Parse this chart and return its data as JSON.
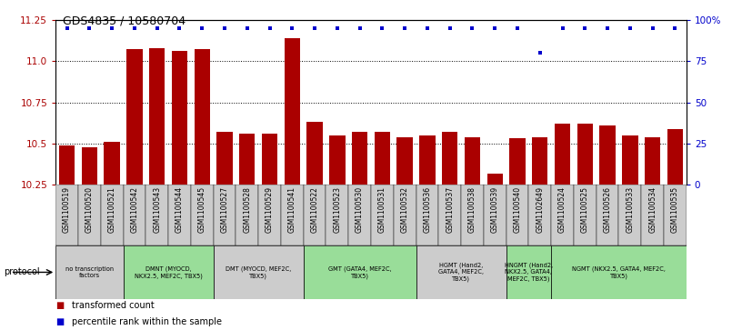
{
  "title": "GDS4835 / 10580704",
  "samples": [
    "GSM1100519",
    "GSM1100520",
    "GSM1100521",
    "GSM1100542",
    "GSM1100543",
    "GSM1100544",
    "GSM1100545",
    "GSM1100527",
    "GSM1100528",
    "GSM1100529",
    "GSM1100541",
    "GSM1100522",
    "GSM1100523",
    "GSM1100530",
    "GSM1100531",
    "GSM1100532",
    "GSM1100536",
    "GSM1100537",
    "GSM1100538",
    "GSM1100539",
    "GSM1100540",
    "GSM1102649",
    "GSM1100524",
    "GSM1100525",
    "GSM1100526",
    "GSM1100533",
    "GSM1100534",
    "GSM1100535"
  ],
  "bar_values": [
    10.49,
    10.48,
    10.51,
    11.07,
    11.08,
    11.06,
    11.07,
    10.57,
    10.56,
    10.56,
    11.14,
    10.63,
    10.55,
    10.57,
    10.57,
    10.54,
    10.55,
    10.57,
    10.54,
    10.32,
    10.53,
    10.54,
    10.62,
    10.62,
    10.61,
    10.55,
    10.54,
    10.59
  ],
  "percentile_values": [
    95,
    95,
    95,
    95,
    95,
    95,
    95,
    95,
    95,
    95,
    95,
    95,
    95,
    95,
    95,
    95,
    95,
    95,
    95,
    95,
    95,
    80,
    95,
    95,
    95,
    95,
    95,
    95
  ],
  "ylim_left": [
    10.25,
    11.25
  ],
  "ylim_right": [
    0,
    100
  ],
  "yticks_left": [
    10.25,
    10.5,
    10.75,
    11.0,
    11.25
  ],
  "yticks_right": [
    0,
    25,
    50,
    75,
    100
  ],
  "bar_color": "#AA0000",
  "dot_color": "#0000CC",
  "protocols": [
    {
      "label": "no transcription\nfactors",
      "start": 0,
      "end": 3,
      "color": "#CCCCCC"
    },
    {
      "label": "DMNT (MYOCD,\nNKX2.5, MEF2C, TBX5)",
      "start": 3,
      "end": 7,
      "color": "#99DD99"
    },
    {
      "label": "DMT (MYOCD, MEF2C,\nTBX5)",
      "start": 7,
      "end": 11,
      "color": "#CCCCCC"
    },
    {
      "label": "GMT (GATA4, MEF2C,\nTBX5)",
      "start": 11,
      "end": 16,
      "color": "#99DD99"
    },
    {
      "label": "HGMT (Hand2,\nGATA4, MEF2C,\nTBX5)",
      "start": 16,
      "end": 20,
      "color": "#CCCCCC"
    },
    {
      "label": "HNGMT (Hand2,\nNKX2.5, GATA4,\nMEF2C, TBX5)",
      "start": 20,
      "end": 22,
      "color": "#99DD99"
    },
    {
      "label": "NGMT (NKX2.5, GATA4, MEF2C,\nTBX5)",
      "start": 22,
      "end": 28,
      "color": "#99DD99"
    }
  ],
  "protocol_label": "protocol",
  "legend_items": [
    {
      "label": "transformed count",
      "color": "#AA0000"
    },
    {
      "label": "percentile rank within the sample",
      "color": "#0000CC"
    }
  ],
  "gridlines": [
    10.5,
    10.75,
    11.0
  ],
  "fig_width": 8.16,
  "fig_height": 3.63
}
